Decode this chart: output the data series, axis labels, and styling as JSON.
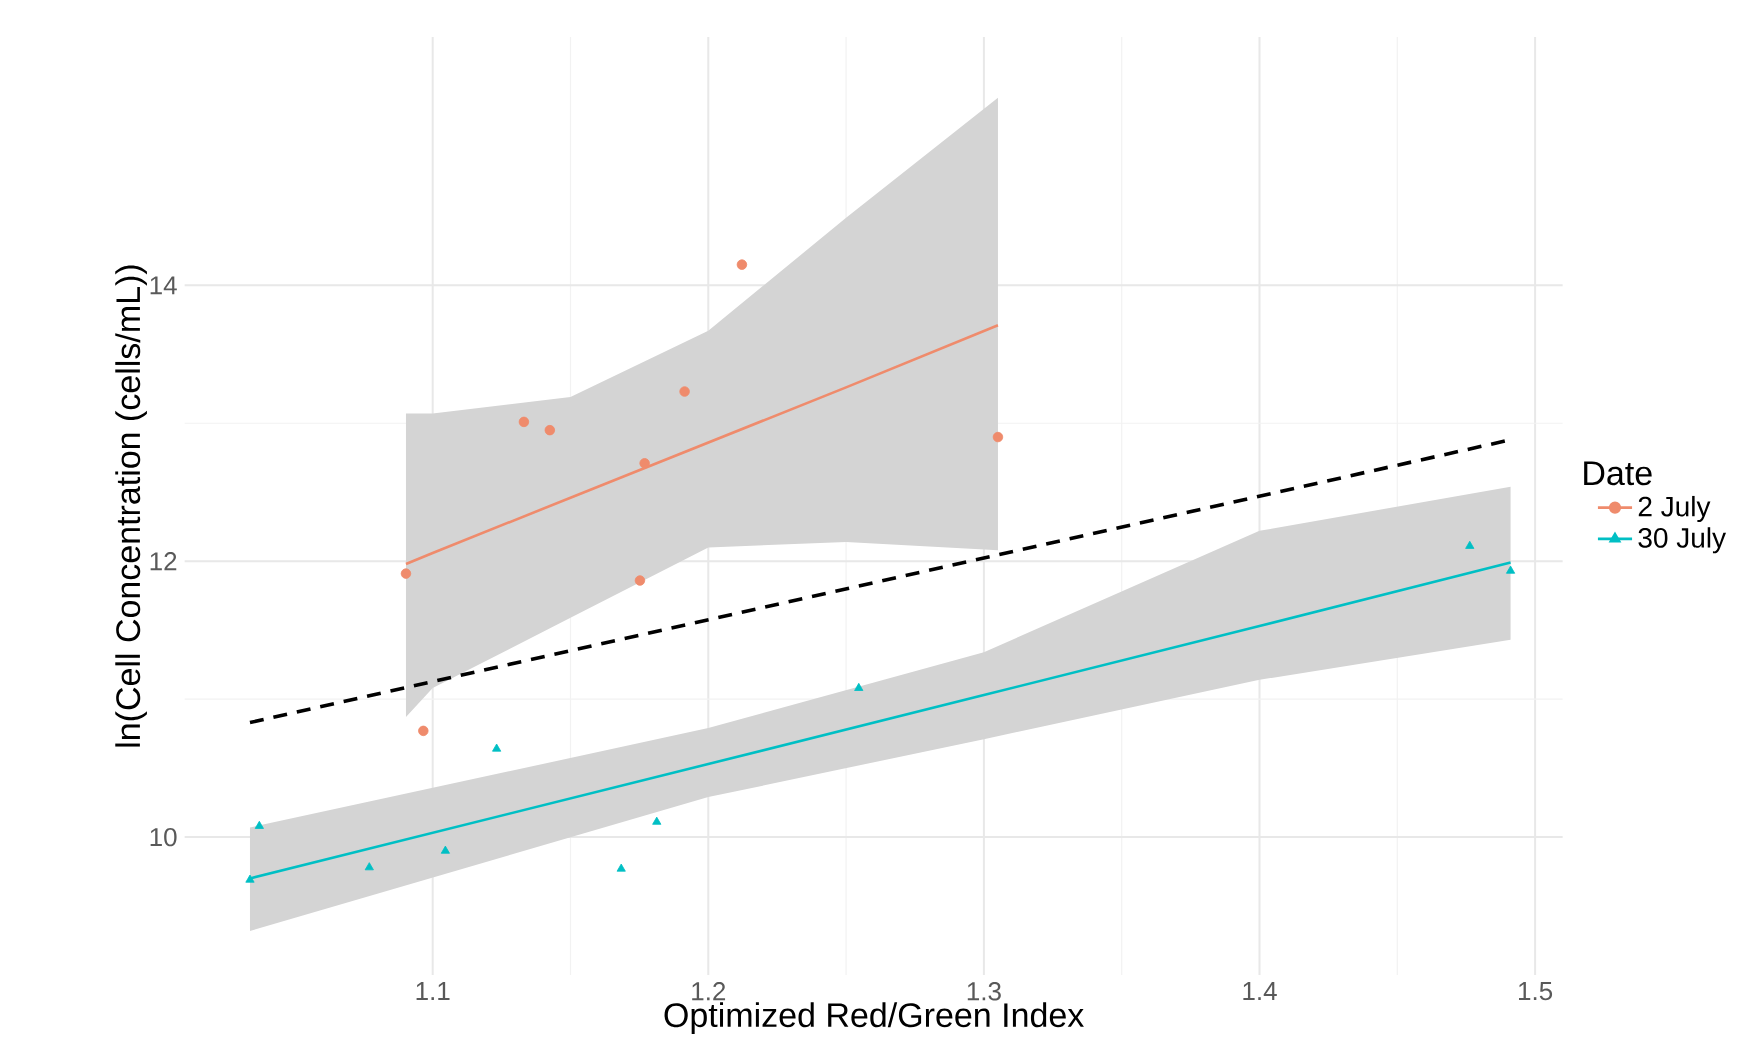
{
  "chart_data": {
    "type": "scatter",
    "xlabel": "Optimized Red/Green Index",
    "ylabel": "ln(Cell Concentration (cells/mL))",
    "legend_title": "Date",
    "legend": "right",
    "grid": true,
    "xlim": [
      1.01,
      1.51
    ],
    "ylim": [
      9.0,
      15.8
    ],
    "xticks": [
      1.1,
      1.2,
      1.3,
      1.4,
      1.5
    ],
    "yticks": [
      10,
      12,
      14
    ],
    "series": [
      {
        "name": "2 July",
        "marker": "circle",
        "color": "#ef8b6c",
        "x": [
          1.0903,
          1.0966,
          1.1331,
          1.1425,
          1.1769,
          1.1752,
          1.1914,
          1.2122,
          1.3051
        ],
        "values": [
          11.91,
          10.77,
          13.01,
          12.95,
          12.71,
          11.86,
          13.23,
          14.15,
          12.9
        ]
      },
      {
        "name": "30 July",
        "marker": "triangle",
        "color": "#00bfc4",
        "x": [
          1.0337,
          1.0371,
          1.077,
          1.1046,
          1.1232,
          1.1684,
          1.1813,
          1.2546,
          1.4763,
          1.4911
        ],
        "values": [
          9.69,
          10.08,
          9.78,
          9.9,
          10.64,
          9.77,
          10.11,
          11.08,
          12.11,
          11.93
        ]
      },
      {
        "type": "line",
        "color": "#ef8b6c",
        "x": [
          1.0903,
          1.1,
          1.15,
          1.2,
          1.25,
          1.3051
        ],
        "values": [
          11.98,
          12.06,
          12.46,
          12.86,
          13.26,
          13.71
        ],
        "lower": [
          10.87,
          11.08,
          11.59,
          12.1,
          12.14,
          12.08
        ],
        "upper": [
          13.07,
          13.07,
          13.19,
          13.67,
          14.49,
          15.36
        ]
      },
      {
        "type": "line",
        "color": "#00bfc4",
        "x": [
          1.0337,
          1.2,
          1.3,
          1.4,
          1.4911
        ],
        "values": [
          9.7,
          10.53,
          11.03,
          11.53,
          11.99
        ],
        "lower": [
          9.32,
          10.29,
          10.71,
          11.14,
          11.43
        ],
        "upper": [
          10.07,
          10.79,
          11.34,
          12.22,
          12.54
        ]
      },
      {
        "type": "line",
        "color": "#000000",
        "line_style": "dashed",
        "x": [
          1.0337,
          1.4911
        ],
        "values": [
          10.83,
          12.88
        ]
      }
    ]
  }
}
